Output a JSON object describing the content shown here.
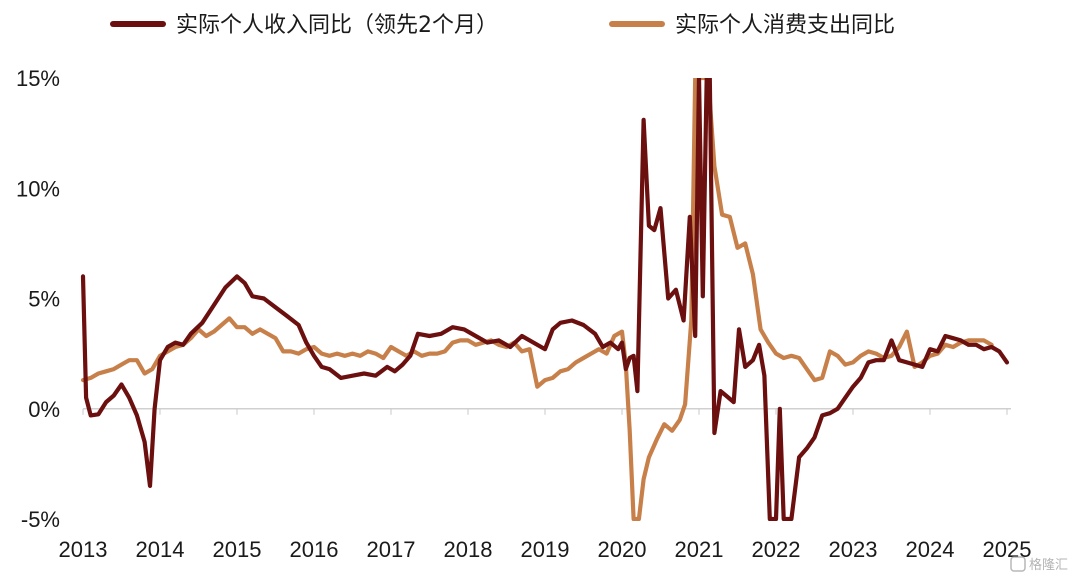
{
  "chart_data": {
    "type": "line",
    "title": "",
    "xlabel": "",
    "ylabel": "",
    "xlim": [
      2013.0,
      2025.0
    ],
    "ylim": [
      -5,
      15
    ],
    "y_ticks": [
      15,
      10,
      5,
      0,
      -5
    ],
    "y_tick_labels": [
      "15%",
      "10%",
      "5%",
      "0%",
      "-5%"
    ],
    "x_ticks": [
      2013,
      2014,
      2015,
      2016,
      2017,
      2018,
      2019,
      2020,
      2021,
      2022,
      2023,
      2024,
      2025
    ],
    "x_tick_labels": [
      "2013",
      "2014",
      "2015",
      "2016",
      "2017",
      "2018",
      "2019",
      "2020",
      "2021",
      "2022",
      "2023",
      "2024",
      "2025"
    ],
    "grid": false,
    "legend_position": "top",
    "series": [
      {
        "name": "实际个人收入同比（领先2个月）",
        "color": "#6b0f0f",
        "points": [
          [
            2013.0,
            6.0
          ],
          [
            2013.04,
            0.5
          ],
          [
            2013.1,
            -0.3
          ],
          [
            2013.2,
            -0.25
          ],
          [
            2013.3,
            0.3
          ],
          [
            2013.4,
            0.6
          ],
          [
            2013.5,
            1.1
          ],
          [
            2013.6,
            0.5
          ],
          [
            2013.7,
            -0.3
          ],
          [
            2013.8,
            -1.5
          ],
          [
            2013.87,
            -3.5
          ],
          [
            2013.93,
            0.0
          ],
          [
            2014.0,
            2.2
          ],
          [
            2014.1,
            2.8
          ],
          [
            2014.2,
            3.0
          ],
          [
            2014.3,
            2.9
          ],
          [
            2014.4,
            3.4
          ],
          [
            2014.55,
            3.9
          ],
          [
            2014.7,
            4.7
          ],
          [
            2014.85,
            5.5
          ],
          [
            2015.0,
            6.0
          ],
          [
            2015.1,
            5.7
          ],
          [
            2015.2,
            5.1
          ],
          [
            2015.35,
            5.0
          ],
          [
            2015.5,
            4.6
          ],
          [
            2015.65,
            4.2
          ],
          [
            2015.8,
            3.8
          ],
          [
            2015.9,
            3.0
          ],
          [
            2016.0,
            2.4
          ],
          [
            2016.1,
            1.9
          ],
          [
            2016.2,
            1.8
          ],
          [
            2016.35,
            1.4
          ],
          [
            2016.5,
            1.5
          ],
          [
            2016.65,
            1.6
          ],
          [
            2016.8,
            1.5
          ],
          [
            2016.95,
            1.9
          ],
          [
            2017.05,
            1.7
          ],
          [
            2017.15,
            2.0
          ],
          [
            2017.25,
            2.4
          ],
          [
            2017.35,
            3.4
          ],
          [
            2017.5,
            3.3
          ],
          [
            2017.65,
            3.4
          ],
          [
            2017.8,
            3.7
          ],
          [
            2017.95,
            3.6
          ],
          [
            2018.1,
            3.3
          ],
          [
            2018.25,
            3.0
          ],
          [
            2018.4,
            3.1
          ],
          [
            2018.55,
            2.8
          ],
          [
            2018.7,
            3.3
          ],
          [
            2018.85,
            3.0
          ],
          [
            2019.0,
            2.7
          ],
          [
            2019.1,
            3.6
          ],
          [
            2019.2,
            3.9
          ],
          [
            2019.35,
            4.0
          ],
          [
            2019.5,
            3.8
          ],
          [
            2019.65,
            3.4
          ],
          [
            2019.75,
            2.8
          ],
          [
            2019.85,
            3.0
          ],
          [
            2019.95,
            2.7
          ],
          [
            2020.0,
            3.0
          ],
          [
            2020.05,
            1.8
          ],
          [
            2020.1,
            2.3
          ],
          [
            2020.15,
            2.4
          ],
          [
            2020.2,
            0.8
          ],
          [
            2020.28,
            13.1
          ],
          [
            2020.35,
            8.3
          ],
          [
            2020.42,
            8.1
          ],
          [
            2020.5,
            9.1
          ],
          [
            2020.6,
            5.0
          ],
          [
            2020.7,
            5.4
          ],
          [
            2020.8,
            4.0
          ],
          [
            2020.88,
            8.7
          ],
          [
            2020.95,
            3.3
          ],
          [
            2021.0,
            15.0
          ],
          [
            2021.05,
            5.1
          ],
          [
            2021.1,
            15.0
          ],
          [
            2021.14,
            15.0
          ],
          [
            2021.2,
            -1.1
          ],
          [
            2021.28,
            0.8
          ],
          [
            2021.35,
            0.6
          ],
          [
            2021.45,
            0.3
          ],
          [
            2021.52,
            3.6
          ],
          [
            2021.6,
            1.9
          ],
          [
            2021.7,
            2.2
          ],
          [
            2021.78,
            2.9
          ],
          [
            2021.85,
            1.5
          ],
          [
            2021.92,
            -5.0
          ],
          [
            2022.0,
            -5.0
          ],
          [
            2022.05,
            0.0
          ],
          [
            2022.1,
            -5.0
          ],
          [
            2022.2,
            -5.0
          ],
          [
            2022.3,
            -2.2
          ],
          [
            2022.4,
            -1.8
          ],
          [
            2022.5,
            -1.3
          ],
          [
            2022.6,
            -0.3
          ],
          [
            2022.7,
            -0.2
          ],
          [
            2022.8,
            0.0
          ],
          [
            2022.9,
            0.5
          ],
          [
            2023.0,
            1.0
          ],
          [
            2023.1,
            1.4
          ],
          [
            2023.2,
            2.1
          ],
          [
            2023.3,
            2.2
          ],
          [
            2023.4,
            2.2
          ],
          [
            2023.5,
            3.1
          ],
          [
            2023.6,
            2.2
          ],
          [
            2023.7,
            2.1
          ],
          [
            2023.8,
            2.0
          ],
          [
            2023.9,
            1.9
          ],
          [
            2024.0,
            2.7
          ],
          [
            2024.1,
            2.6
          ],
          [
            2024.2,
            3.3
          ],
          [
            2024.3,
            3.2
          ],
          [
            2024.4,
            3.1
          ],
          [
            2024.5,
            2.9
          ],
          [
            2024.6,
            2.9
          ],
          [
            2024.7,
            2.7
          ],
          [
            2024.8,
            2.8
          ],
          [
            2024.9,
            2.6
          ],
          [
            2025.0,
            2.1
          ]
        ]
      },
      {
        "name": "实际个人消费支出同比",
        "color": "#c8804a",
        "points": [
          [
            2013.0,
            1.3
          ],
          [
            2013.1,
            1.4
          ],
          [
            2013.2,
            1.6
          ],
          [
            2013.3,
            1.7
          ],
          [
            2013.4,
            1.8
          ],
          [
            2013.5,
            2.0
          ],
          [
            2013.6,
            2.2
          ],
          [
            2013.7,
            2.2
          ],
          [
            2013.8,
            1.6
          ],
          [
            2013.9,
            1.8
          ],
          [
            2014.0,
            2.4
          ],
          [
            2014.1,
            2.6
          ],
          [
            2014.2,
            2.8
          ],
          [
            2014.3,
            2.9
          ],
          [
            2014.4,
            3.2
          ],
          [
            2014.5,
            3.6
          ],
          [
            2014.6,
            3.3
          ],
          [
            2014.7,
            3.5
          ],
          [
            2014.8,
            3.8
          ],
          [
            2014.9,
            4.1
          ],
          [
            2015.0,
            3.7
          ],
          [
            2015.1,
            3.7
          ],
          [
            2015.2,
            3.4
          ],
          [
            2015.3,
            3.6
          ],
          [
            2015.4,
            3.4
          ],
          [
            2015.5,
            3.2
          ],
          [
            2015.6,
            2.6
          ],
          [
            2015.7,
            2.6
          ],
          [
            2015.8,
            2.5
          ],
          [
            2015.9,
            2.7
          ],
          [
            2016.0,
            2.8
          ],
          [
            2016.1,
            2.5
          ],
          [
            2016.2,
            2.4
          ],
          [
            2016.3,
            2.5
          ],
          [
            2016.4,
            2.4
          ],
          [
            2016.5,
            2.5
          ],
          [
            2016.6,
            2.4
          ],
          [
            2016.7,
            2.6
          ],
          [
            2016.8,
            2.5
          ],
          [
            2016.9,
            2.3
          ],
          [
            2017.0,
            2.8
          ],
          [
            2017.1,
            2.6
          ],
          [
            2017.2,
            2.4
          ],
          [
            2017.3,
            2.6
          ],
          [
            2017.4,
            2.4
          ],
          [
            2017.5,
            2.5
          ],
          [
            2017.6,
            2.5
          ],
          [
            2017.7,
            2.6
          ],
          [
            2017.8,
            3.0
          ],
          [
            2017.9,
            3.1
          ],
          [
            2018.0,
            3.1
          ],
          [
            2018.1,
            2.9
          ],
          [
            2018.2,
            3.0
          ],
          [
            2018.3,
            3.1
          ],
          [
            2018.4,
            2.9
          ],
          [
            2018.5,
            2.8
          ],
          [
            2018.6,
            3.0
          ],
          [
            2018.7,
            2.6
          ],
          [
            2018.8,
            2.7
          ],
          [
            2018.9,
            1.0
          ],
          [
            2019.0,
            1.3
          ],
          [
            2019.1,
            1.4
          ],
          [
            2019.2,
            1.7
          ],
          [
            2019.3,
            1.8
          ],
          [
            2019.4,
            2.1
          ],
          [
            2019.5,
            2.3
          ],
          [
            2019.6,
            2.5
          ],
          [
            2019.7,
            2.7
          ],
          [
            2019.8,
            2.5
          ],
          [
            2019.9,
            3.3
          ],
          [
            2020.0,
            3.5
          ],
          [
            2020.05,
            2.0
          ],
          [
            2020.1,
            -1.0
          ],
          [
            2020.15,
            -5.0
          ],
          [
            2020.22,
            -5.0
          ],
          [
            2020.28,
            -3.2
          ],
          [
            2020.35,
            -2.2
          ],
          [
            2020.45,
            -1.4
          ],
          [
            2020.55,
            -0.7
          ],
          [
            2020.65,
            -1.0
          ],
          [
            2020.75,
            -0.5
          ],
          [
            2020.82,
            0.2
          ],
          [
            2020.9,
            4.0
          ],
          [
            2020.95,
            15.0
          ],
          [
            2021.05,
            15.0
          ],
          [
            2021.12,
            15.0
          ],
          [
            2021.2,
            11.0
          ],
          [
            2021.3,
            8.8
          ],
          [
            2021.4,
            8.7
          ],
          [
            2021.5,
            7.3
          ],
          [
            2021.6,
            7.5
          ],
          [
            2021.7,
            6.1
          ],
          [
            2021.8,
            3.6
          ],
          [
            2021.9,
            3.0
          ],
          [
            2022.0,
            2.5
          ],
          [
            2022.1,
            2.3
          ],
          [
            2022.2,
            2.4
          ],
          [
            2022.3,
            2.3
          ],
          [
            2022.4,
            1.8
          ],
          [
            2022.5,
            1.3
          ],
          [
            2022.6,
            1.4
          ],
          [
            2022.7,
            2.6
          ],
          [
            2022.8,
            2.4
          ],
          [
            2022.9,
            2.0
          ],
          [
            2023.0,
            2.1
          ],
          [
            2023.1,
            2.4
          ],
          [
            2023.2,
            2.6
          ],
          [
            2023.3,
            2.5
          ],
          [
            2023.4,
            2.3
          ],
          [
            2023.5,
            2.4
          ],
          [
            2023.6,
            2.8
          ],
          [
            2023.7,
            3.5
          ],
          [
            2023.8,
            1.9
          ],
          [
            2023.9,
            2.1
          ],
          [
            2024.0,
            2.4
          ],
          [
            2024.1,
            2.5
          ],
          [
            2024.2,
            2.9
          ],
          [
            2024.3,
            2.8
          ],
          [
            2024.4,
            3.0
          ],
          [
            2024.5,
            3.1
          ],
          [
            2024.6,
            3.1
          ],
          [
            2024.7,
            3.1
          ],
          [
            2024.8,
            2.9
          ]
        ]
      }
    ]
  },
  "watermark": "格隆汇"
}
